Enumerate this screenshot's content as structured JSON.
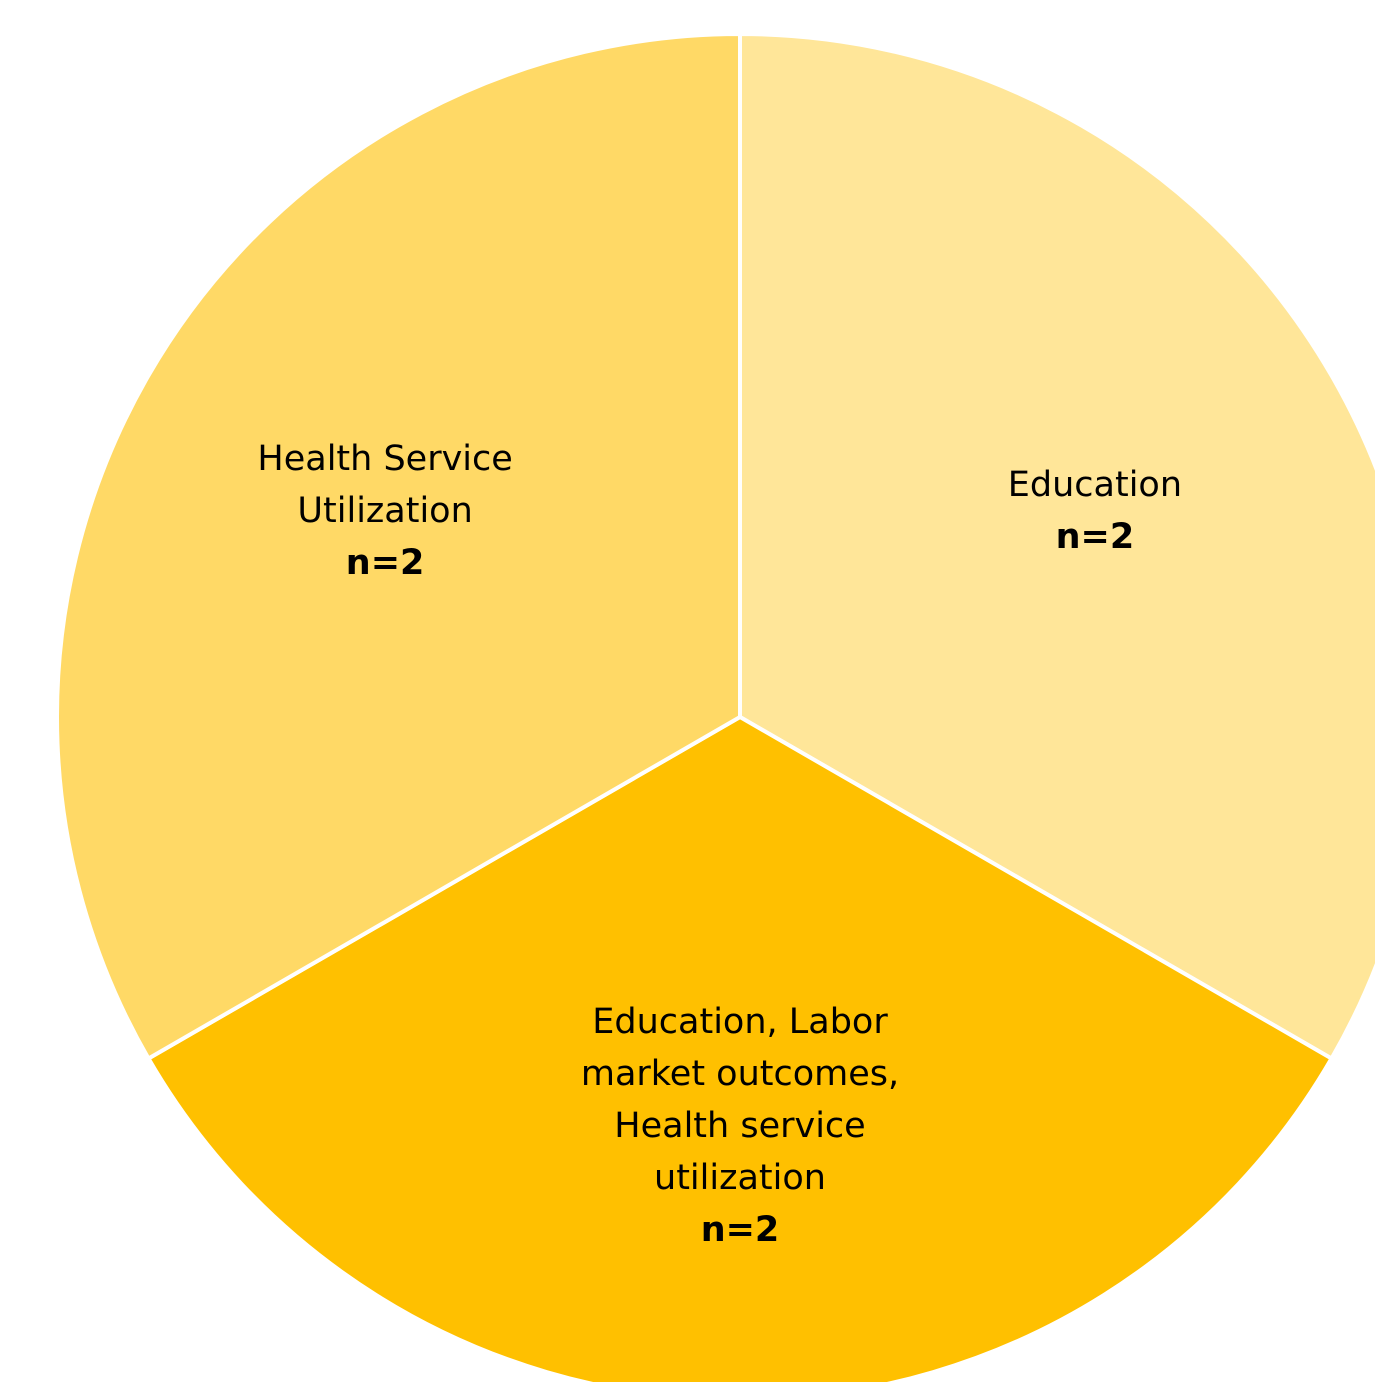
{
  "chart_data": {
    "type": "pie",
    "slices": [
      {
        "label_lines": [
          "Education"
        ],
        "count_label": "n=2",
        "value": 2,
        "color": "#FFE699"
      },
      {
        "label_lines": [
          "Education, Labor",
          "market outcomes,",
          "Health service",
          "utilization"
        ],
        "count_label": "n=2",
        "value": 2,
        "color": "#FFC000"
      },
      {
        "label_lines": [
          "Health Service",
          "Utilization"
        ],
        "count_label": "n=2",
        "value": 2,
        "color": "#FFD966"
      }
    ],
    "start_angle_deg": 0,
    "direction": "clockwise",
    "separator_color": "#FFFFFF"
  }
}
